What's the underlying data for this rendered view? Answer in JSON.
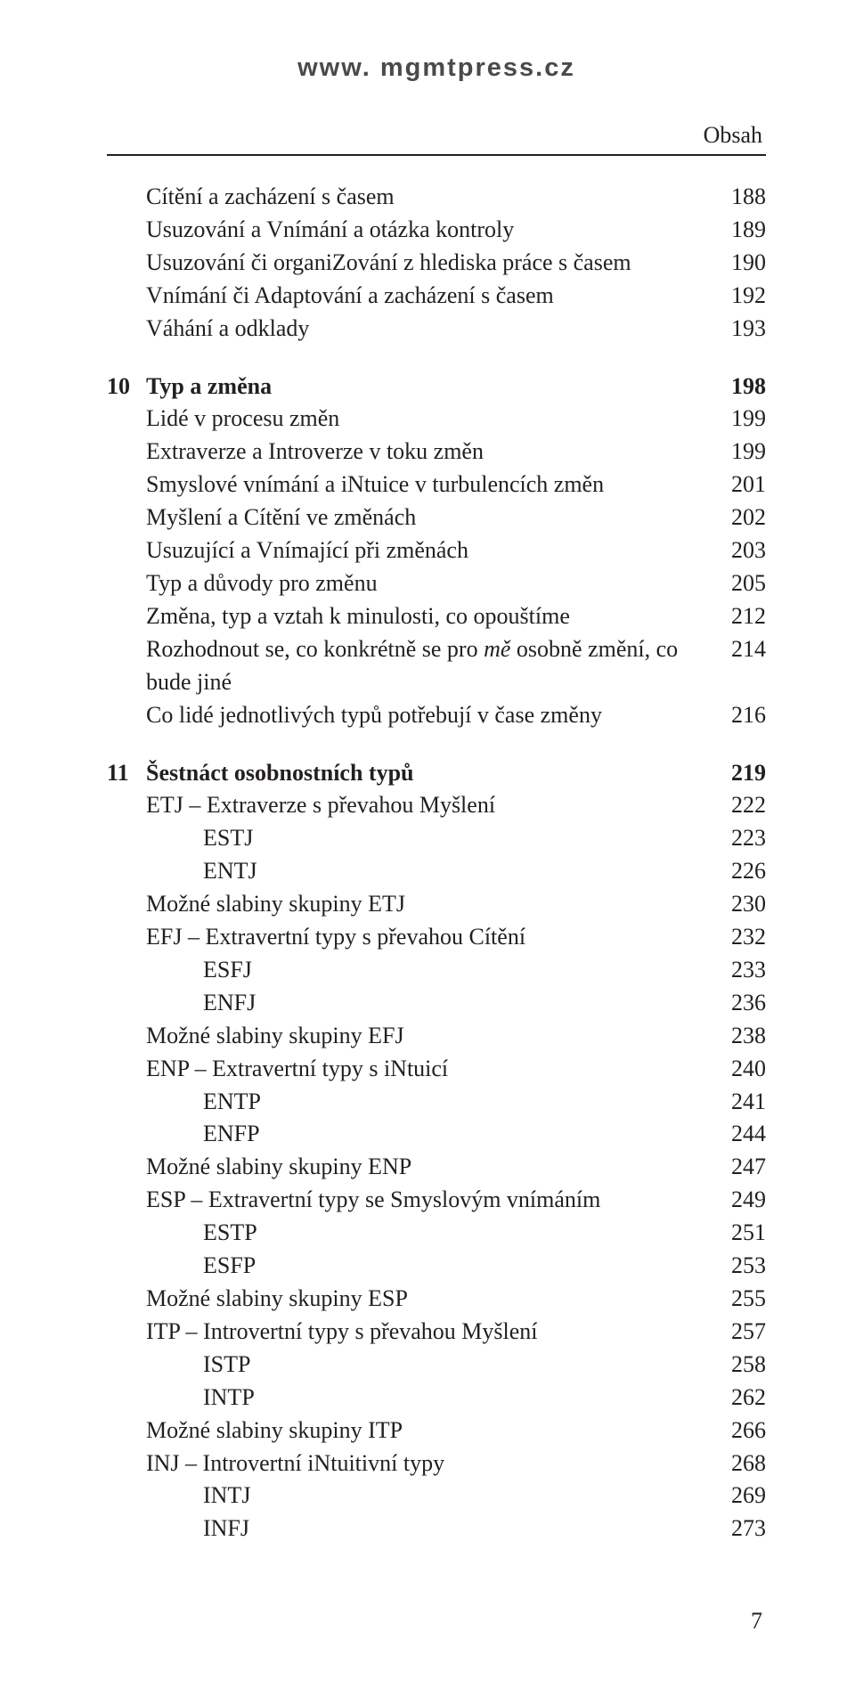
{
  "header_url": "www. mgmtpress.cz",
  "obsah_label": "Obsah",
  "page_number": "7",
  "blocks": [
    {
      "rows": [
        {
          "label": "Cítění a zacházení s časem",
          "page": "188",
          "indent": 1
        },
        {
          "label": "Usuzování a Vnímání a otázka kontroly",
          "page": "189",
          "indent": 1
        },
        {
          "label": "Usuzování či organiZování z hlediska práce s časem",
          "page": "190",
          "indent": 1
        },
        {
          "label": "Vnímání či Adaptování a zacházení s časem",
          "page": "192",
          "indent": 1
        },
        {
          "label": "Váhání a odklady",
          "page": "193",
          "indent": 1
        }
      ]
    },
    {
      "rows": [
        {
          "chapter": "10",
          "title": "Typ a změna",
          "page": "198"
        },
        {
          "label": "Lidé v procesu změn",
          "page": "199",
          "indent": 1
        },
        {
          "label": "Extraverze a Introverze v toku změn",
          "page": "199",
          "indent": 1
        },
        {
          "label": "Smyslové vnímání a iNtuice v turbulencích změn",
          "page": "201",
          "indent": 1
        },
        {
          "label": "Myšlení a Cítění ve změnách",
          "page": "202",
          "indent": 1
        },
        {
          "label": "Usuzující a Vnímající při změnách",
          "page": "203",
          "indent": 1
        },
        {
          "label": "Typ a důvody pro změnu",
          "page": "205",
          "indent": 1
        },
        {
          "label": "Změna, typ a vztah k minulosti, co opouštíme",
          "page": "212",
          "indent": 1
        },
        {
          "label_html": "Rozhodnout se, co konkrétně se pro <i>mě</i> osobně změní, co bude jiné",
          "page": "214",
          "indent": 1
        },
        {
          "label": "Co lidé jednotlivých typů potřebují v čase změny",
          "page": "216",
          "indent": 1
        }
      ]
    },
    {
      "rows": [
        {
          "chapter": "11",
          "title": "Šestnáct osobnostních typů",
          "page": "219"
        },
        {
          "label": "ETJ – Extraverze s převahou Myšlení",
          "page": "222",
          "indent": 1
        },
        {
          "label": "ESTJ",
          "page": "223",
          "indent": 2
        },
        {
          "label": "ENTJ",
          "page": "226",
          "indent": 2
        },
        {
          "label": "Možné slabiny skupiny ETJ",
          "page": "230",
          "indent": 1
        },
        {
          "label": "EFJ – Extravertní typy s převahou Cítění",
          "page": "232",
          "indent": 1
        },
        {
          "label": "ESFJ",
          "page": "233",
          "indent": 2
        },
        {
          "label": "ENFJ",
          "page": "236",
          "indent": 2
        },
        {
          "label": "Možné slabiny skupiny EFJ",
          "page": "238",
          "indent": 1
        },
        {
          "label": "ENP – Extravertní typy s iNtuicí",
          "page": "240",
          "indent": 1
        },
        {
          "label": "ENTP",
          "page": "241",
          "indent": 2
        },
        {
          "label": "ENFP",
          "page": "244",
          "indent": 2
        },
        {
          "label": "Možné slabiny skupiny ENP",
          "page": "247",
          "indent": 1
        },
        {
          "label": "ESP – Extravertní typy se Smyslovým vnímáním",
          "page": "249",
          "indent": 1
        },
        {
          "label": "ESTP",
          "page": "251",
          "indent": 2
        },
        {
          "label": "ESFP",
          "page": "253",
          "indent": 2
        },
        {
          "label": "Možné slabiny skupiny ESP",
          "page": "255",
          "indent": 1
        },
        {
          "label": "ITP – Introvertní typy s převahou Myšlení",
          "page": "257",
          "indent": 1
        },
        {
          "label": "ISTP",
          "page": "258",
          "indent": 2
        },
        {
          "label": "INTP",
          "page": "262",
          "indent": 2
        },
        {
          "label": "Možné slabiny skupiny ITP",
          "page": "266",
          "indent": 1
        },
        {
          "label": "INJ – Introvertní iNtuitivní typy",
          "page": "268",
          "indent": 1
        },
        {
          "label": "INTJ",
          "page": "269",
          "indent": 2
        },
        {
          "label": "INFJ",
          "page": "273",
          "indent": 2
        }
      ]
    }
  ]
}
